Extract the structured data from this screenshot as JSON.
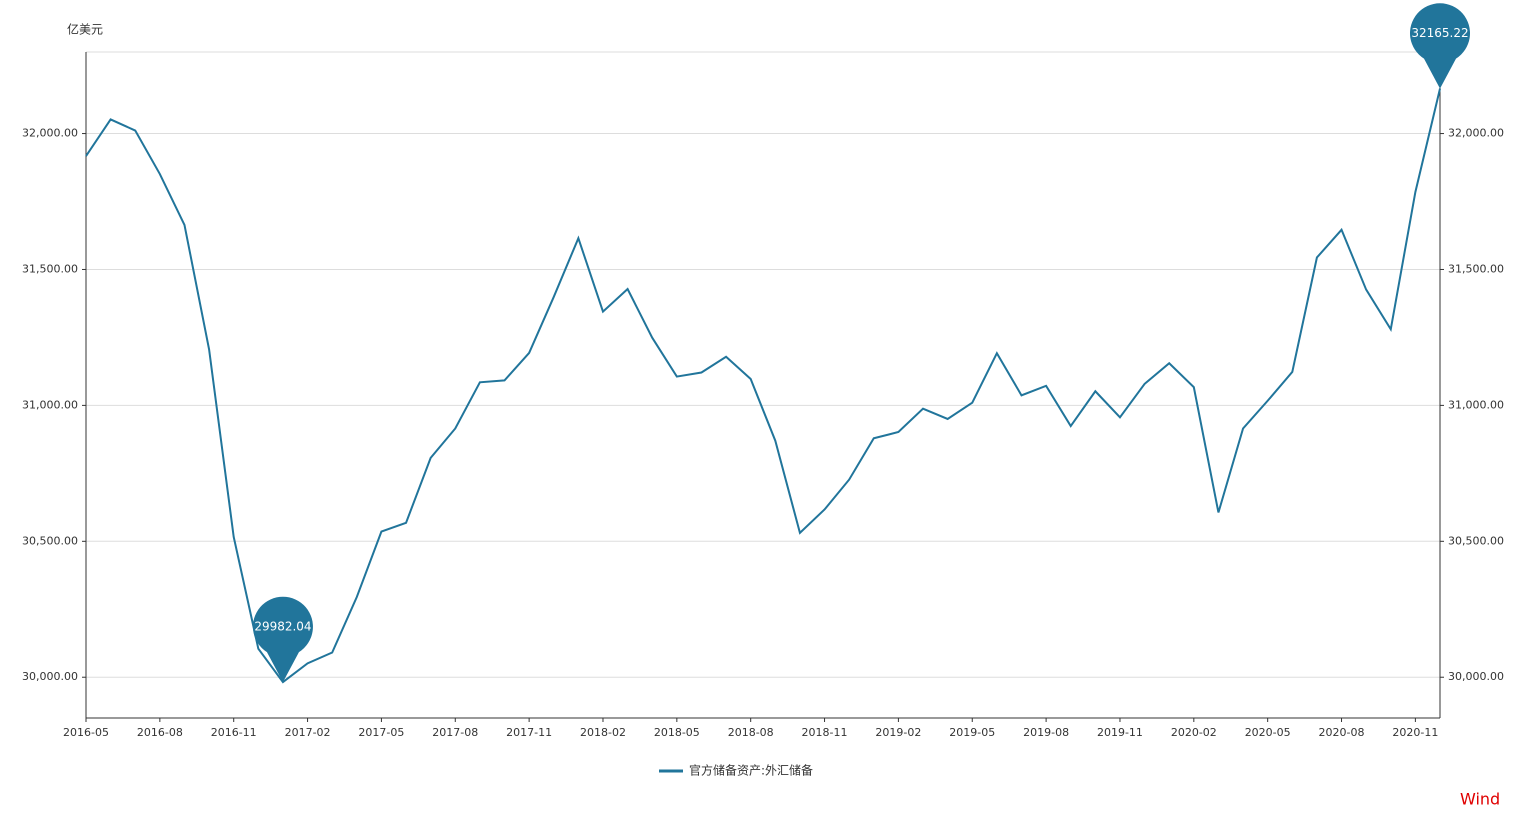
{
  "chart_data": {
    "type": "line",
    "y_axis_label": "亿美元",
    "source": "Wind",
    "categories": [
      "2016-05",
      null,
      null,
      "2016-08",
      null,
      null,
      "2016-11",
      null,
      null,
      "2017-02",
      null,
      null,
      "2017-05",
      null,
      null,
      "2017-08",
      null,
      null,
      "2017-11",
      null,
      null,
      "2018-02",
      null,
      null,
      "2018-05",
      null,
      null,
      "2018-08",
      null,
      null,
      "2018-11",
      null,
      null,
      "2019-02",
      null,
      null,
      "2019-05",
      null,
      null,
      "2019-08",
      null,
      null,
      "2019-11",
      null,
      null,
      "2020-02",
      null,
      null,
      "2020-05",
      null,
      null,
      "2020-08",
      null,
      null,
      "2020-11",
      null
    ],
    "series": [
      {
        "name": "官方储备资产:外汇储备",
        "color": "#21759b",
        "values": [
          31917,
          32052,
          32011,
          31851,
          31664,
          31206,
          30516,
          30105,
          29982.04,
          30051,
          30091,
          30295,
          30536,
          30568,
          30807,
          30915,
          31085,
          31092,
          31193,
          31399,
          31615,
          31345,
          31428,
          31249,
          31106,
          31121,
          31179,
          31097,
          30870,
          30531,
          30617,
          30727,
          30879,
          30902,
          30988,
          30950,
          31010,
          31192,
          31037,
          31072,
          30924,
          31052,
          30956,
          31079,
          31155,
          31067,
          30606,
          30915,
          31017,
          31123,
          31544,
          31646,
          31426,
          31280,
          31785,
          32165.22
        ]
      }
    ],
    "ylim": [
      29850,
      32300
    ],
    "yticks": [
      {
        "value": 30000,
        "label": "30,000.00"
      },
      {
        "value": 30500,
        "label": "30,500.00"
      },
      {
        "value": 31000,
        "label": "31,000.00"
      },
      {
        "value": 31500,
        "label": "31,500.00"
      },
      {
        "value": 32000,
        "label": "32,000.00"
      }
    ],
    "grid": true,
    "pin_points": "min-max",
    "legend": "bottom"
  }
}
